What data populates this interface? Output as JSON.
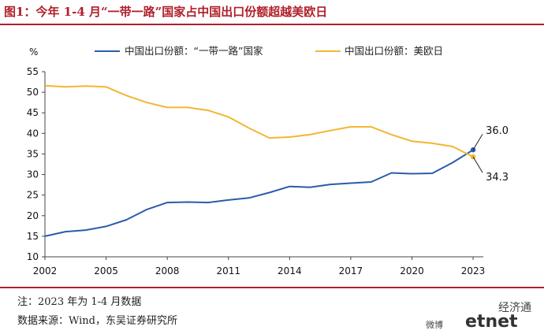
{
  "title": "图1：今年 1-4 月“一带一路”国家占中国出口份额超越美欧日",
  "note": "注：2023 年为 1-4 月数据",
  "source": "数据来源：Wind，东吴证券研究所",
  "watermark": {
    "brand_cn": "经济通",
    "brand_en": "etnet",
    "weibo": "微博"
  },
  "colors": {
    "title": "#b0202a",
    "brb": "#2a5caa",
    "us_eu_jp": "#f2b632"
  },
  "chart_data": {
    "type": "line",
    "unit_label": "%",
    "ylim": [
      10,
      55
    ],
    "yticks": [
      10,
      15,
      20,
      25,
      30,
      35,
      40,
      45,
      50,
      55
    ],
    "xlim": [
      2002,
      2023.5
    ],
    "xticks": [
      2002,
      2005,
      2008,
      2011,
      2014,
      2017,
      2020,
      2023
    ],
    "legend_position": "top",
    "series": [
      {
        "name": "中国出口份额：“一带一路”国家",
        "color": "#2a5caa",
        "x": [
          2002,
          2003,
          2004,
          2005,
          2006,
          2007,
          2008,
          2009,
          2010,
          2011,
          2012,
          2013,
          2014,
          2015,
          2016,
          2017,
          2018,
          2019,
          2020,
          2021,
          2022,
          2023
        ],
        "values": [
          15.0,
          16.1,
          16.5,
          17.4,
          19.0,
          21.5,
          23.2,
          23.3,
          23.2,
          23.8,
          24.3,
          25.6,
          27.1,
          26.9,
          27.6,
          27.9,
          28.2,
          30.4,
          30.2,
          30.3,
          32.9,
          36.0
        ]
      },
      {
        "name": "中国出口份额：美欧日",
        "color": "#f2b632",
        "x": [
          2002,
          2003,
          2004,
          2005,
          2006,
          2007,
          2008,
          2009,
          2010,
          2011,
          2012,
          2013,
          2014,
          2015,
          2016,
          2017,
          2018,
          2019,
          2020,
          2021,
          2022,
          2023
        ],
        "values": [
          51.6,
          51.3,
          51.5,
          51.3,
          49.2,
          47.5,
          46.3,
          46.3,
          45.6,
          44.0,
          41.3,
          38.9,
          39.1,
          39.7,
          40.7,
          41.6,
          41.6,
          39.7,
          38.1,
          37.6,
          36.8,
          34.3
        ]
      }
    ],
    "end_labels": [
      "36.0",
      "34.3"
    ]
  }
}
